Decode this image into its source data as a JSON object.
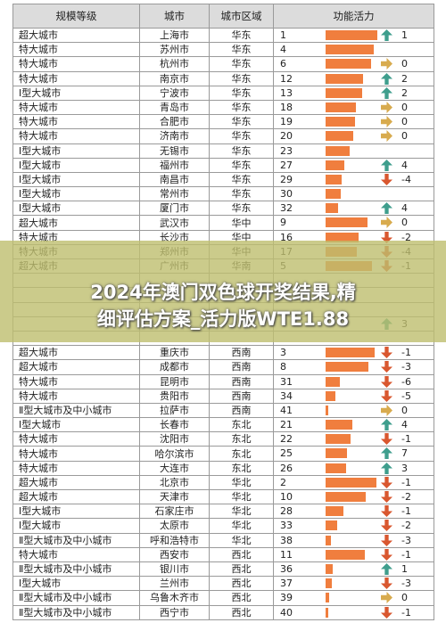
{
  "header": {
    "col1": "规模等级",
    "col2": "城市",
    "col3": "城市区域",
    "col4": "功能活力"
  },
  "overlay": {
    "line1": "2024年澳门双色球开奖结果,精",
    "line2": "细评估方案_活力版WTE1.88"
  },
  "colors": {
    "bar": "#f07e3e",
    "up": "#3f9e8d",
    "down": "#d9572f",
    "flat": "#d8ab4e",
    "header_bg": "#dcdcdc"
  },
  "rows": [
    {
      "tier": "超大城市",
      "city": "上海市",
      "region": "华东",
      "rank": "1",
      "dir": "up",
      "change": "1"
    },
    {
      "tier": "特大城市",
      "city": "苏州市",
      "region": "华东",
      "rank": "4",
      "dir": "",
      "change": ""
    },
    {
      "tier": "特大城市",
      "city": "杭州市",
      "region": "华东",
      "rank": "6",
      "dir": "flat",
      "change": "0"
    },
    {
      "tier": "特大城市",
      "city": "南京市",
      "region": "华东",
      "rank": "12",
      "dir": "up",
      "change": "2"
    },
    {
      "tier": "Ⅰ型大城市",
      "city": "宁波市",
      "region": "华东",
      "rank": "13",
      "dir": "up",
      "change": "2"
    },
    {
      "tier": "特大城市",
      "city": "青岛市",
      "region": "华东",
      "rank": "18",
      "dir": "flat",
      "change": "0"
    },
    {
      "tier": "特大城市",
      "city": "合肥市",
      "region": "华东",
      "rank": "19",
      "dir": "flat",
      "change": "0"
    },
    {
      "tier": "特大城市",
      "city": "济南市",
      "region": "华东",
      "rank": "20",
      "dir": "flat",
      "change": "0"
    },
    {
      "tier": "Ⅰ型大城市",
      "city": "无锡市",
      "region": "华东",
      "rank": "23",
      "dir": "",
      "change": ""
    },
    {
      "tier": "Ⅰ型大城市",
      "city": "福州市",
      "region": "华东",
      "rank": "27",
      "dir": "up",
      "change": "4"
    },
    {
      "tier": "Ⅰ型大城市",
      "city": "南昌市",
      "region": "华东",
      "rank": "29",
      "dir": "down",
      "change": "-4"
    },
    {
      "tier": "Ⅰ型大城市",
      "city": "常州市",
      "region": "华东",
      "rank": "30",
      "dir": "",
      "change": ""
    },
    {
      "tier": "Ⅰ型大城市",
      "city": "厦门市",
      "region": "华东",
      "rank": "32",
      "dir": "up",
      "change": "4"
    },
    {
      "tier": "超大城市",
      "city": "武汉市",
      "region": "华中",
      "rank": "9",
      "dir": "flat",
      "change": "0"
    },
    {
      "tier": "特大城市",
      "city": "长沙市",
      "region": "华中",
      "rank": "16",
      "dir": "down",
      "change": "-2"
    },
    {
      "tier": "特大城市",
      "city": "郑州市",
      "region": "华中",
      "rank": "17",
      "dir": "down",
      "change": "-4"
    },
    {
      "tier": "超大城市",
      "city": "广州市",
      "region": "华南",
      "rank": "5",
      "dir": "down",
      "change": "-1"
    },
    {
      "tier": "",
      "city": "",
      "region": "",
      "rank": "",
      "dir": "",
      "change": ""
    },
    {
      "tier": "",
      "city": "",
      "region": "",
      "rank": "",
      "dir": "",
      "change": ""
    },
    {
      "tier": "",
      "city": "",
      "region": "",
      "rank": "",
      "dir": "",
      "change": ""
    },
    {
      "tier": "",
      "city": "",
      "region": "",
      "rank": "",
      "dir": "up",
      "change": "3"
    },
    {
      "tier": "",
      "city": "",
      "region": "",
      "rank": "",
      "dir": "",
      "change": ""
    },
    {
      "tier": "超大城市",
      "city": "重庆市",
      "region": "西南",
      "rank": "3",
      "dir": "down",
      "change": "-1"
    },
    {
      "tier": "超大城市",
      "city": "成都市",
      "region": "西南",
      "rank": "8",
      "dir": "down",
      "change": "-3"
    },
    {
      "tier": "特大城市",
      "city": "昆明市",
      "region": "西南",
      "rank": "31",
      "dir": "down",
      "change": "-6"
    },
    {
      "tier": "特大城市",
      "city": "贵阳市",
      "region": "西南",
      "rank": "34",
      "dir": "down",
      "change": "-5"
    },
    {
      "tier": "Ⅱ型大城市及中小城市",
      "city": "拉萨市",
      "region": "西南",
      "rank": "41",
      "dir": "flat",
      "change": "0"
    },
    {
      "tier": "Ⅰ型大城市",
      "city": "长春市",
      "region": "东北",
      "rank": "21",
      "dir": "up",
      "change": "4"
    },
    {
      "tier": "特大城市",
      "city": "沈阳市",
      "region": "东北",
      "rank": "22",
      "dir": "down",
      "change": "-1"
    },
    {
      "tier": "特大城市",
      "city": "哈尔滨市",
      "region": "东北",
      "rank": "25",
      "dir": "up",
      "change": "7"
    },
    {
      "tier": "特大城市",
      "city": "大连市",
      "region": "东北",
      "rank": "26",
      "dir": "up",
      "change": "3"
    },
    {
      "tier": "超大城市",
      "city": "北京市",
      "region": "华北",
      "rank": "2",
      "dir": "down",
      "change": "-1"
    },
    {
      "tier": "超大城市",
      "city": "天津市",
      "region": "华北",
      "rank": "10",
      "dir": "down",
      "change": "-2"
    },
    {
      "tier": "Ⅰ型大城市",
      "city": "石家庄市",
      "region": "华北",
      "rank": "28",
      "dir": "down",
      "change": "-1"
    },
    {
      "tier": "Ⅰ型大城市",
      "city": "太原市",
      "region": "华北",
      "rank": "33",
      "dir": "down",
      "change": "-2"
    },
    {
      "tier": "Ⅱ型大城市及中小城市",
      "city": "呼和浩特市",
      "region": "华北",
      "rank": "38",
      "dir": "down",
      "change": "-3"
    },
    {
      "tier": "特大城市",
      "city": "西安市",
      "region": "西北",
      "rank": "11",
      "dir": "down",
      "change": "-1"
    },
    {
      "tier": "Ⅱ型大城市及中小城市",
      "city": "银川市",
      "region": "西北",
      "rank": "36",
      "dir": "up",
      "change": "1"
    },
    {
      "tier": "Ⅰ型大城市",
      "city": "兰州市",
      "region": "西北",
      "rank": "37",
      "dir": "down",
      "change": "-3"
    },
    {
      "tier": "Ⅱ型大城市及中小城市",
      "city": "乌鲁木齐市",
      "region": "西北",
      "rank": "39",
      "dir": "flat",
      "change": "0"
    },
    {
      "tier": "Ⅱ型大城市及中小城市",
      "city": "西宁市",
      "region": "西北",
      "rank": "40",
      "dir": "down",
      "change": "-1"
    }
  ]
}
